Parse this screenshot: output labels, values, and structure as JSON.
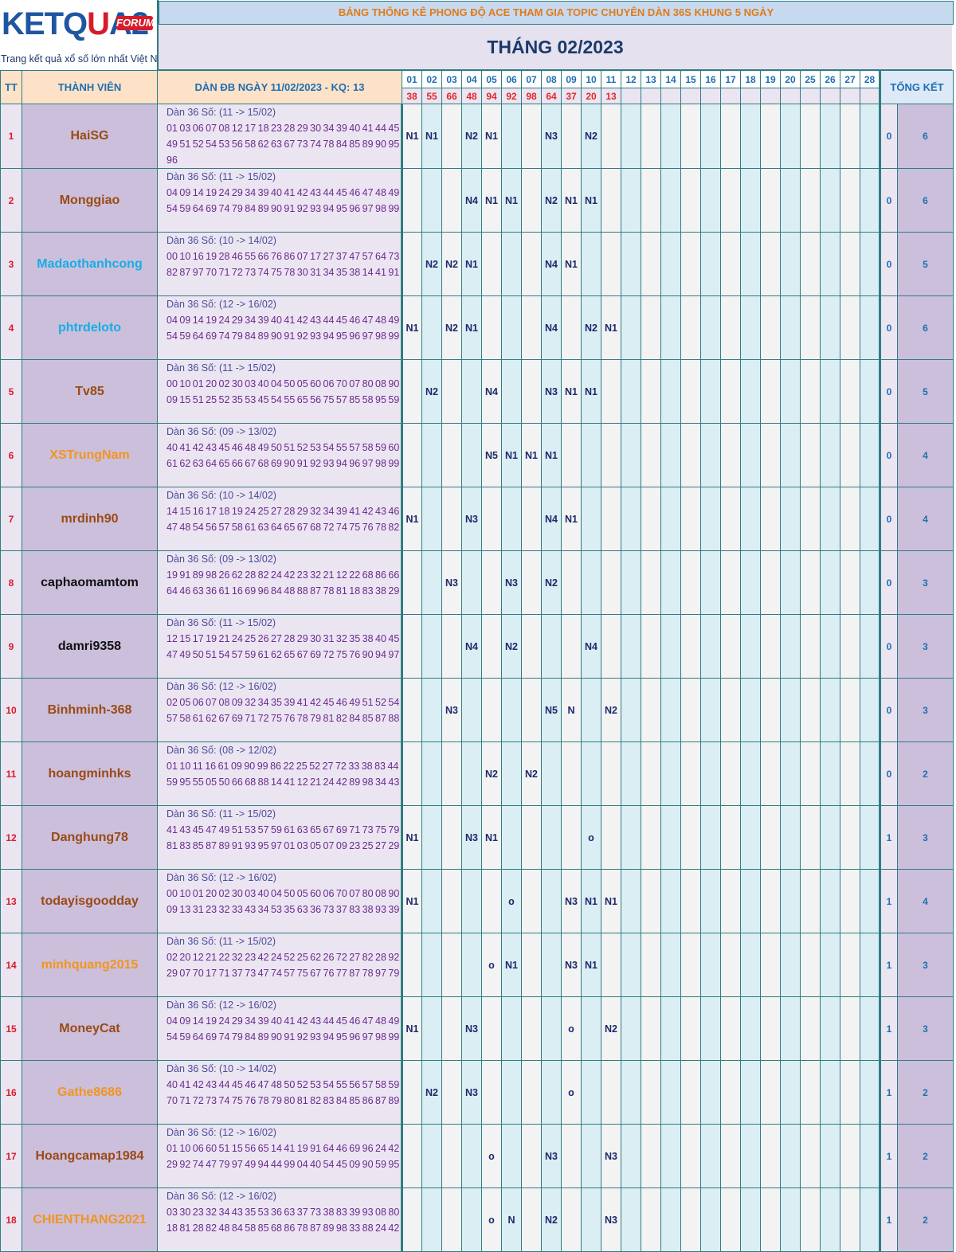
{
  "logo": {
    "brand_pre": "KETQ",
    "brand_o": "U",
    "brand_post": "A2",
    "badge": "FORUM",
    "slogan": "Trang kết quả xổ số lớn nhất Việt Nam"
  },
  "title": "BẢNG THỐNG KÊ PHONG ĐỘ ACE THAM GIA TOPIC CHUYÊN DÀN 36S KHUNG 5 NGÀY",
  "month": "THÁNG 02/2023",
  "headers": {
    "tt": "TT",
    "member": "THÀNH VIÊN",
    "dan": "DÀN ĐB NGÀY 11/02/2023 - KQ: 13",
    "summary": "TỔNG KẾT"
  },
  "days": [
    "01",
    "02",
    "03",
    "04",
    "05",
    "06",
    "07",
    "08",
    "09",
    "10",
    "11",
    "12",
    "13",
    "14",
    "15",
    "16",
    "17",
    "18",
    "19",
    "20",
    "25",
    "26",
    "27",
    "28"
  ],
  "results": [
    "38",
    "55",
    "66",
    "48",
    "94",
    "92",
    "98",
    "64",
    "37",
    "20",
    "13",
    "",
    "",
    "",
    "",
    "",
    "",
    "",
    "",
    "",
    "",
    "",
    "",
    ""
  ],
  "colors": {
    "border": "#2e7d82",
    "header_bg": "#fde2c8",
    "name_bg": "#cbbfdc",
    "accent_red": "#d81b2a",
    "accent_blue": "#1f6fb2"
  },
  "rows": [
    {
      "tt": "1",
      "name": "HaiSG",
      "name_color": "brown",
      "dan_label": "Dàn 36 Số: (11 -> 15/02)",
      "numbers": "01 03 06 07 08 12 17 18 23 28 29 30 34 39 40 41 44 45 49 51 52 54 53 56 58 62 63 67 73 74 78 84 85 89 90 95 96",
      "marks": [
        "N1",
        "N1",
        "",
        "N2",
        "N1",
        "",
        "",
        "N3",
        "",
        "N2",
        "",
        "",
        "",
        "",
        "",
        "",
        "",
        "",
        "",
        "",
        "",
        "",
        "",
        ""
      ],
      "total_a": "0",
      "total_b": "6"
    },
    {
      "tt": "2",
      "name": "Monggiao",
      "name_color": "brown",
      "dan_label": "Dàn 36 Số: (11 -> 15/02)",
      "numbers": "04 09 14 19 24 29 34 39 40 41 42 43 44 45 46 47 48 49 54 59 64 69 74 79 84 89 90 91 92 93 94 95 96 97 98 99",
      "marks": [
        "",
        "",
        "",
        "N4",
        "N1",
        "N1",
        "",
        "N2",
        "N1",
        "N1",
        "",
        "",
        "",
        "",
        "",
        "",
        "",
        "",
        "",
        "",
        "",
        "",
        "",
        ""
      ],
      "total_a": "0",
      "total_b": "6"
    },
    {
      "tt": "3",
      "name": "Madaothanhcong",
      "name_color": "cyan",
      "dan_label": "Dàn 36 Số: (10 -> 14/02)",
      "numbers": "00 10 16 19 28 46 55 66 76 86 07 17 27 37 47 57 64 73 82 87 97 70 71 72 73 74 75 78 30 31 34 35 38 14 41 91",
      "marks": [
        "",
        "N2",
        "N2",
        "N1",
        "",
        "",
        "",
        "N4",
        "N1",
        "",
        "",
        "",
        "",
        "",
        "",
        "",
        "",
        "",
        "",
        "",
        "",
        "",
        "",
        ""
      ],
      "total_a": "0",
      "total_b": "5"
    },
    {
      "tt": "4",
      "name": "phtrdeloto",
      "name_color": "cyan",
      "dan_label": "Dàn 36 Số: (12 -> 16/02)",
      "numbers": "04 09 14 19 24 29 34 39 40 41 42 43 44 45 46 47 48 49 54 59 64 69 74 79 84 89 90 91 92 93 94 95 96 97 98 99",
      "marks": [
        "N1",
        "",
        "N2",
        "N1",
        "",
        "",
        "",
        "N4",
        "",
        "N2",
        "N1",
        "",
        "",
        "",
        "",
        "",
        "",
        "",
        "",
        "",
        "",
        "",
        "",
        ""
      ],
      "total_a": "0",
      "total_b": "6"
    },
    {
      "tt": "5",
      "name": "Tv85",
      "name_color": "brown",
      "dan_label": "Dàn 36 Số: (11 -> 15/02)",
      "numbers": "00 10 01 20 02 30 03 40 04 50 05 60 06 70 07 80 08 90 09 15 51 25 52 35 53 45 54 55 65 56 75 57 85 58 95 59",
      "marks": [
        "",
        "N2",
        "",
        "",
        "N4",
        "",
        "",
        "N3",
        "N1",
        "N1",
        "",
        "",
        "",
        "",
        "",
        "",
        "",
        "",
        "",
        "",
        "",
        "",
        "",
        ""
      ],
      "total_a": "0",
      "total_b": "5"
    },
    {
      "tt": "6",
      "name": "XSTrungNam",
      "name_color": "orange",
      "dan_label": "Dàn 36 Số: (09 -> 13/02)",
      "numbers": "40 41 42 43 45 46 48 49 50 51 52 53 54 55 57 58 59 60 61 62 63 64 65 66 67 68 69 90 91 92 93 94 96 97 98 99",
      "marks": [
        "",
        "",
        "",
        "",
        "N5",
        "N1",
        "N1",
        "N1",
        "",
        "",
        "",
        "",
        "",
        "",
        "",
        "",
        "",
        "",
        "",
        "",
        "",
        "",
        "",
        ""
      ],
      "total_a": "0",
      "total_b": "4"
    },
    {
      "tt": "7",
      "name": "mrdinh90",
      "name_color": "brown",
      "dan_label": "Dàn 36 Số: (10 -> 14/02)",
      "numbers": "14 15 16 17 18 19 24 25 27 28 29 32 34 39 41 42 43 46 47 48 54 56 57 58 61 63 64 65 67 68 72 74 75 76 78 82",
      "marks": [
        "N1",
        "",
        "",
        "N3",
        "",
        "",
        "",
        "N4",
        "N1",
        "",
        "",
        "",
        "",
        "",
        "",
        "",
        "",
        "",
        "",
        "",
        "",
        "",
        "",
        ""
      ],
      "total_a": "0",
      "total_b": "4"
    },
    {
      "tt": "8",
      "name": "caphaomamtom",
      "name_color": "black",
      "dan_label": "Dàn 36 Số: (09 -> 13/02)",
      "numbers": "19 91 89 98 26 62 28 82 24 42 23 32 21 12 22 68 86 66 64 46 63 36 61 16 69 96 84 48 88 87 78 81 18 83 38 29",
      "marks": [
        "",
        "",
        "N3",
        "",
        "",
        "N3",
        "",
        "N2",
        "",
        "",
        "",
        "",
        "",
        "",
        "",
        "",
        "",
        "",
        "",
        "",
        "",
        "",
        "",
        ""
      ],
      "total_a": "0",
      "total_b": "3"
    },
    {
      "tt": "9",
      "name": "damri9358",
      "name_color": "black",
      "dan_label": "Dàn 36 Số: (11 -> 15/02)",
      "numbers": "12 15 17 19 21 24 25 26 27 28 29 30 31 32 35 38 40 45 47 49 50 51 54 57 59 61 62 65 67 69 72 75 76 90 94 97",
      "marks": [
        "",
        "",
        "",
        "N4",
        "",
        "N2",
        "",
        "",
        "",
        "N4",
        "",
        "",
        "",
        "",
        "",
        "",
        "",
        "",
        "",
        "",
        "",
        "",
        "",
        ""
      ],
      "total_a": "0",
      "total_b": "3"
    },
    {
      "tt": "10",
      "name": "Binhminh-368",
      "name_color": "brown",
      "dan_label": "Dàn 36 Số: (12 -> 16/02)",
      "numbers": "02 05 06 07 08 09 32 34 35 39 41 42 45 46 49 51 52 54 57 58 61 62 67 69 71 72 75 76 78 79 81 82 84 85 87 88",
      "marks": [
        "",
        "",
        "N3",
        "",
        "",
        "",
        "",
        "N5",
        "N",
        "",
        "N2",
        "",
        "",
        "",
        "",
        "",
        "",
        "",
        "",
        "",
        "",
        "",
        "",
        ""
      ],
      "total_a": "0",
      "total_b": "3"
    },
    {
      "tt": "11",
      "name": "hoangminhks",
      "name_color": "brown",
      "dan_label": "Dàn 36 Số: (08 -> 12/02)",
      "numbers": "01 10 11 16 61 09 90 99 86 22 25 52 27 72 33 38 83 44 59 95 55 05 50 66 68 88 14 41 12 21 24 42 89 98 34 43",
      "marks": [
        "",
        "",
        "",
        "",
        "N2",
        "",
        "N2",
        "",
        "",
        "",
        "",
        "",
        "",
        "",
        "",
        "",
        "",
        "",
        "",
        "",
        "",
        "",
        "",
        ""
      ],
      "total_a": "0",
      "total_b": "2"
    },
    {
      "tt": "12",
      "name": "Danghung78",
      "name_color": "brown",
      "dan_label": "Dàn 36 Số: (11 -> 15/02)",
      "numbers": "41 43 45 47 49 51 53 57 59 61 63 65 67 69 71 73 75 79 81 83 85 87 89 91 93 95 97 01 03 05 07 09 23 25 27 29",
      "marks": [
        "N1",
        "",
        "",
        "N3",
        "N1",
        "",
        "",
        "",
        "",
        "o",
        "",
        "",
        "",
        "",
        "",
        "",
        "",
        "",
        "",
        "",
        "",
        "",
        "",
        ""
      ],
      "total_a": "1",
      "total_b": "3"
    },
    {
      "tt": "13",
      "name": "todayisgoodday",
      "name_color": "brown",
      "dan_label": "Dàn 36 Số: (12 -> 16/02)",
      "numbers": "00 10 01 20 02 30 03 40 04 50 05 60 06 70 07 80 08 90 09 13 31 23 32 33 43 34 53 35 63 36 73 37 83 38 93 39",
      "marks": [
        "N1",
        "",
        "",
        "",
        "",
        "o",
        "",
        "",
        "N3",
        "N1",
        "N1",
        "",
        "",
        "",
        "",
        "",
        "",
        "",
        "",
        "",
        "",
        "",
        "",
        ""
      ],
      "total_a": "1",
      "total_b": "4"
    },
    {
      "tt": "14",
      "name": "minhquang2015",
      "name_color": "orange",
      "dan_label": "Dàn 36 Số: (11 -> 15/02)",
      "numbers": "02 20 12 21 22 32 23 42 24 52 25 62 26 72 27 82 28 92 29 07 70 17 71 37 73 47 74 57 75 67 76 77 87 78 97 79",
      "marks": [
        "",
        "",
        "",
        "",
        "o",
        "N1",
        "",
        "",
        "N3",
        "N1",
        "",
        "",
        "",
        "",
        "",
        "",
        "",
        "",
        "",
        "",
        "",
        "",
        "",
        ""
      ],
      "total_a": "1",
      "total_b": "3"
    },
    {
      "tt": "15",
      "name": "MoneyCat",
      "name_color": "brown",
      "dan_label": "Dàn 36 Số: (12 -> 16/02)",
      "numbers": "04 09 14 19 24 29 34 39 40 41 42 43 44 45 46 47 48 49 54 59 64 69 74 79 84 89 90 91 92 93 94 95 96 97 98 99",
      "marks": [
        "N1",
        "",
        "",
        "N3",
        "",
        "",
        "",
        "",
        "o",
        "",
        "N2",
        "",
        "",
        "",
        "",
        "",
        "",
        "",
        "",
        "",
        "",
        "",
        "",
        ""
      ],
      "total_a": "1",
      "total_b": "3"
    },
    {
      "tt": "16",
      "name": "Gathe8686",
      "name_color": "orange",
      "dan_label": "Dàn 36 Số: (10 -> 14/02)",
      "numbers": "40 41 42 43 44 45 46 47 48 50 52 53 54 55 56 57 58 59 70 71 72 73 74 75 76 78 79 80 81 82 83 84 85 86 87 89",
      "marks": [
        "",
        "N2",
        "",
        "N3",
        "",
        "",
        "",
        "",
        "o",
        "",
        "",
        "",
        "",
        "",
        "",
        "",
        "",
        "",
        "",
        "",
        "",
        "",
        "",
        ""
      ],
      "total_a": "1",
      "total_b": "2"
    },
    {
      "tt": "17",
      "name": "Hoangcamap1984",
      "name_color": "brown",
      "dan_label": "Dàn 36 Số: (12 -> 16/02)",
      "numbers": "01 10 06 60 51 15 56 65 14 41 19 91 64 46 69 96 24 42 29 92 74 47 79 97 49 94 44 99 04 40 54 45 09 90 59 95",
      "marks": [
        "",
        "",
        "",
        "",
        "o",
        "",
        "",
        "N3",
        "",
        "",
        "N3",
        "",
        "",
        "",
        "",
        "",
        "",
        "",
        "",
        "",
        "",
        "",
        "",
        ""
      ],
      "total_a": "1",
      "total_b": "2"
    },
    {
      "tt": "18",
      "name": "CHIENTHANG2021",
      "name_color": "orange",
      "dan_label": "Dàn 36 Số: (12 -> 16/02)",
      "numbers": "03 30 23 32 34 43 35 53 36 63 37 73 38 83 39 93 08 80 18 81 28 82 48 84 58 85 68 86 78 87 89 98 33 88 24 42",
      "marks": [
        "",
        "",
        "",
        "",
        "o",
        "N",
        "",
        "N2",
        "",
        "",
        "N3",
        "",
        "",
        "",
        "",
        "",
        "",
        "",
        "",
        "",
        "",
        "",
        "",
        ""
      ],
      "total_a": "1",
      "total_b": "2"
    }
  ]
}
